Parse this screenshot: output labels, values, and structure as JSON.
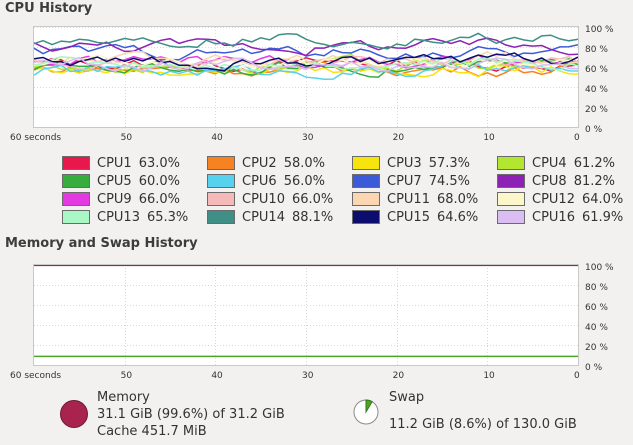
{
  "cpu_history": {
    "title": "CPU History",
    "y_ticks": [
      "100 %",
      "80 %",
      "60 %",
      "40 %",
      "20 %",
      "0 %"
    ],
    "x_ticks": [
      "60 seconds",
      "50",
      "40",
      "30",
      "20",
      "10",
      "0"
    ],
    "cpus": [
      {
        "name": "CPU1",
        "value": "63.0%",
        "color": "#e8174c"
      },
      {
        "name": "CPU2",
        "value": "58.0%",
        "color": "#f78222"
      },
      {
        "name": "CPU3",
        "value": "57.3%",
        "color": "#f7e40c"
      },
      {
        "name": "CPU4",
        "value": "61.2%",
        "color": "#b3e62e"
      },
      {
        "name": "CPU5",
        "value": "60.0%",
        "color": "#36ad3c"
      },
      {
        "name": "CPU6",
        "value": "56.0%",
        "color": "#56d2ee"
      },
      {
        "name": "CPU7",
        "value": "74.5%",
        "color": "#3b5bd8"
      },
      {
        "name": "CPU8",
        "value": "81.2%",
        "color": "#8d22b5"
      },
      {
        "name": "CPU9",
        "value": "66.0%",
        "color": "#e43ae2"
      },
      {
        "name": "CPU10",
        "value": "66.0%",
        "color": "#f5b9b9"
      },
      {
        "name": "CPU11",
        "value": "68.0%",
        "color": "#fbd6b0"
      },
      {
        "name": "CPU12",
        "value": "64.0%",
        "color": "#fcf7c8"
      },
      {
        "name": "CPU13",
        "value": "65.3%",
        "color": "#a9f7c5"
      },
      {
        "name": "CPU14",
        "value": "88.1%",
        "color": "#3f8f87"
      },
      {
        "name": "CPU15",
        "value": "64.6%",
        "color": "#0c0d6c"
      },
      {
        "name": "CPU16",
        "value": "61.9%",
        "color": "#d9bdf3"
      }
    ]
  },
  "memory_history": {
    "title": "Memory and Swap History",
    "y_ticks": [
      "100 %",
      "80 %",
      "60 %",
      "40 %",
      "20 %",
      "0 %"
    ],
    "x_ticks": [
      "60 seconds",
      "50",
      "40",
      "30",
      "20",
      "10",
      "0"
    ],
    "memory": {
      "label": "Memory",
      "usage": "31.1 GiB (99.6%) of 31.2 GiB",
      "cache": "Cache 451.7 MiB",
      "color": "#a8244f",
      "percent": 99.6
    },
    "swap": {
      "label": "Swap",
      "usage": "11.2 GiB (8.6%) of 130.0 GiB",
      "color": "#4ea626",
      "percent": 8.6
    }
  }
}
